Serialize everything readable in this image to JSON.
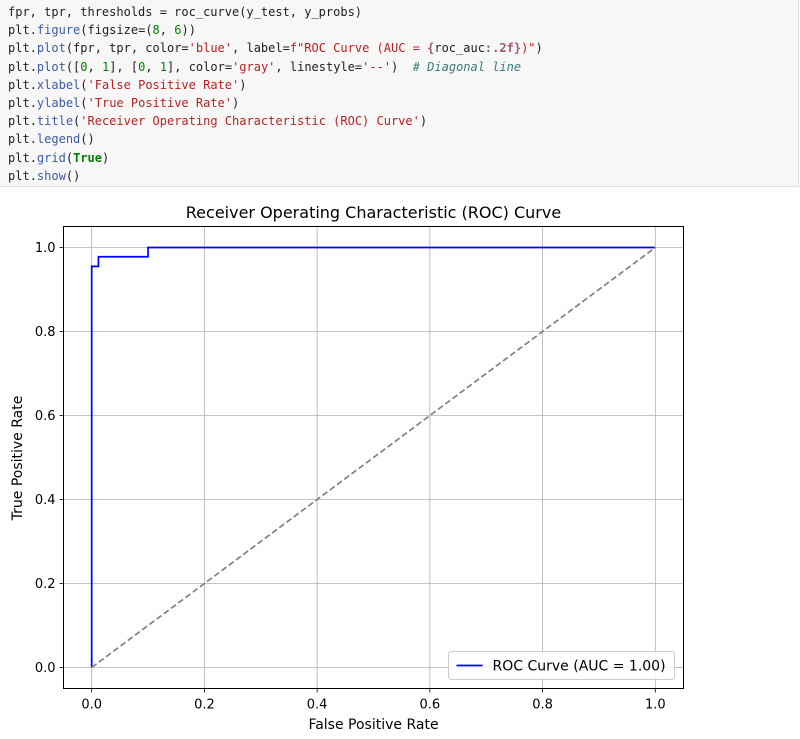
{
  "code_cell": {
    "lines": [
      [
        {
          "t": "fpr, tpr, thresholds ",
          "c": "var"
        },
        {
          "t": "=",
          "c": "op"
        },
        {
          "t": " roc_curve(y_test, y_probs)",
          "c": "var"
        }
      ],
      [
        {
          "t": "plt",
          "c": "var"
        },
        {
          "t": ".",
          "c": "op"
        },
        {
          "t": "figure",
          "c": "func"
        },
        {
          "t": "(figsize",
          "c": "var"
        },
        {
          "t": "=",
          "c": "op"
        },
        {
          "t": "(",
          "c": "var"
        },
        {
          "t": "8",
          "c": "num"
        },
        {
          "t": ", ",
          "c": "var"
        },
        {
          "t": "6",
          "c": "num"
        },
        {
          "t": "))",
          "c": "var"
        }
      ],
      [
        {
          "t": "plt",
          "c": "var"
        },
        {
          "t": ".",
          "c": "op"
        },
        {
          "t": "plot",
          "c": "func"
        },
        {
          "t": "(fpr, tpr, color",
          "c": "var"
        },
        {
          "t": "=",
          "c": "op"
        },
        {
          "t": "'blue'",
          "c": "str"
        },
        {
          "t": ", label",
          "c": "var"
        },
        {
          "t": "=",
          "c": "op"
        },
        {
          "t": "f\"ROC Curve (AUC = ",
          "c": "str"
        },
        {
          "t": "{",
          "c": "interp"
        },
        {
          "t": "roc_auc",
          "c": "var"
        },
        {
          "t": ":.2f",
          "c": "interp"
        },
        {
          "t": "}",
          "c": "interp"
        },
        {
          "t": ")\"",
          "c": "str"
        },
        {
          "t": ")",
          "c": "var"
        }
      ],
      [
        {
          "t": "plt",
          "c": "var"
        },
        {
          "t": ".",
          "c": "op"
        },
        {
          "t": "plot",
          "c": "func"
        },
        {
          "t": "([",
          "c": "var"
        },
        {
          "t": "0",
          "c": "num"
        },
        {
          "t": ", ",
          "c": "var"
        },
        {
          "t": "1",
          "c": "num"
        },
        {
          "t": "], [",
          "c": "var"
        },
        {
          "t": "0",
          "c": "num"
        },
        {
          "t": ", ",
          "c": "var"
        },
        {
          "t": "1",
          "c": "num"
        },
        {
          "t": "], color",
          "c": "var"
        },
        {
          "t": "=",
          "c": "op"
        },
        {
          "t": "'gray'",
          "c": "str"
        },
        {
          "t": ", linestyle",
          "c": "var"
        },
        {
          "t": "=",
          "c": "op"
        },
        {
          "t": "'--'",
          "c": "str"
        },
        {
          "t": ")  ",
          "c": "var"
        },
        {
          "t": "# Diagonal line",
          "c": "comment"
        }
      ],
      [
        {
          "t": "plt",
          "c": "var"
        },
        {
          "t": ".",
          "c": "op"
        },
        {
          "t": "xlabel",
          "c": "func"
        },
        {
          "t": "(",
          "c": "var"
        },
        {
          "t": "'False Positive Rate'",
          "c": "str"
        },
        {
          "t": ")",
          "c": "var"
        }
      ],
      [
        {
          "t": "plt",
          "c": "var"
        },
        {
          "t": ".",
          "c": "op"
        },
        {
          "t": "ylabel",
          "c": "func"
        },
        {
          "t": "(",
          "c": "var"
        },
        {
          "t": "'True Positive Rate'",
          "c": "str"
        },
        {
          "t": ")",
          "c": "var"
        }
      ],
      [
        {
          "t": "plt",
          "c": "var"
        },
        {
          "t": ".",
          "c": "op"
        },
        {
          "t": "title",
          "c": "func"
        },
        {
          "t": "(",
          "c": "var"
        },
        {
          "t": "'Receiver Operating Characteristic (ROC) Curve'",
          "c": "str"
        },
        {
          "t": ")",
          "c": "var"
        }
      ],
      [
        {
          "t": "plt",
          "c": "var"
        },
        {
          "t": ".",
          "c": "op"
        },
        {
          "t": "legend",
          "c": "func"
        },
        {
          "t": "()",
          "c": "var"
        }
      ],
      [
        {
          "t": "plt",
          "c": "var"
        },
        {
          "t": ".",
          "c": "op"
        },
        {
          "t": "grid",
          "c": "func"
        },
        {
          "t": "(",
          "c": "var"
        },
        {
          "t": "True",
          "c": "kw"
        },
        {
          "t": ")",
          "c": "var"
        }
      ],
      [
        {
          "t": "plt",
          "c": "var"
        },
        {
          "t": ".",
          "c": "op"
        },
        {
          "t": "show",
          "c": "func"
        },
        {
          "t": "()",
          "c": "var"
        }
      ]
    ]
  },
  "chart_data": {
    "type": "line",
    "title": "Receiver Operating Characteristic (ROC) Curve",
    "xlabel": "False Positive Rate",
    "ylabel": "True Positive Rate",
    "xlim": [
      -0.05,
      1.05
    ],
    "ylim": [
      -0.05,
      1.05
    ],
    "xticks": [
      0.0,
      0.2,
      0.4,
      0.6,
      0.8,
      1.0
    ],
    "yticks": [
      0.0,
      0.2,
      0.4,
      0.6,
      0.8,
      1.0
    ],
    "xtick_labels": [
      "0.0",
      "0.2",
      "0.4",
      "0.6",
      "0.8",
      "1.0"
    ],
    "ytick_labels": [
      "0.0",
      "0.2",
      "0.4",
      "0.6",
      "0.8",
      "1.0"
    ],
    "grid": true,
    "legend_position": "lower-right",
    "series": [
      {
        "name": "ROC Curve (AUC = 1.00)",
        "color": "#0000ff",
        "linestyle": "solid",
        "x": [
          0.0,
          0.0,
          0.0,
          0.012,
          0.012,
          0.1,
          0.1,
          1.0
        ],
        "y": [
          0.0,
          0.955,
          0.955,
          0.955,
          0.978,
          0.978,
          1.0,
          1.0
        ]
      },
      {
        "name": "",
        "color": "#808080",
        "linestyle": "dashed",
        "x": [
          0,
          1
        ],
        "y": [
          0,
          1
        ]
      }
    ]
  }
}
